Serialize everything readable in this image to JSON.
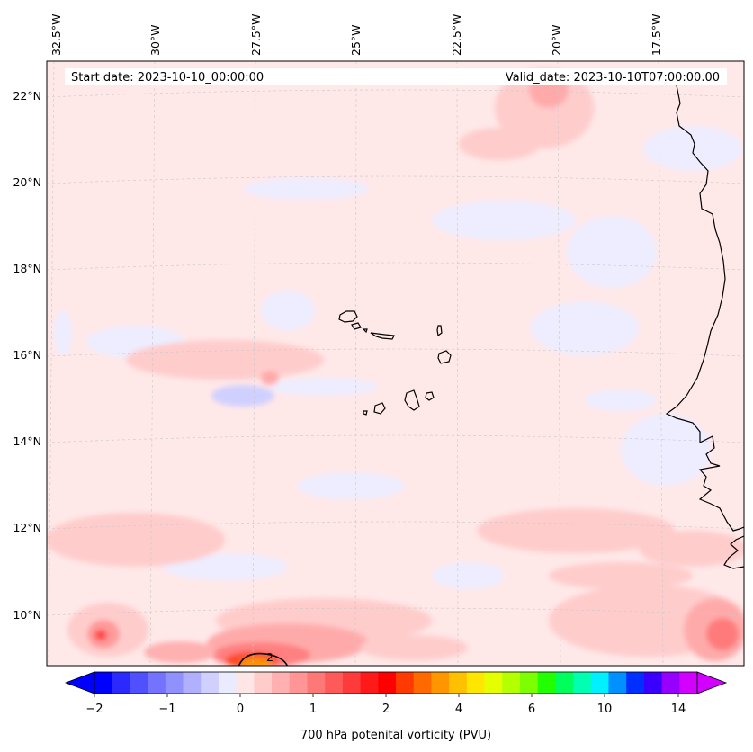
{
  "header": {
    "start_date": "Start date: 2023-10-10_00:00:00",
    "valid_date": "Valid_date: 2023-10-10T07:00:00.00"
  },
  "map": {
    "background_color": "#ffe8e8",
    "coastline_color": "#000000",
    "longitude_labels": [
      "32.5°W",
      "30°W",
      "27.5°W",
      "25°W",
      "22.5°W",
      "20°W",
      "17.5°W"
    ],
    "latitude_labels": [
      "22°N",
      "20°N",
      "18°N",
      "16°N",
      "14°N",
      "12°N",
      "10°N"
    ],
    "contour_label": "2",
    "features": {
      "cape_verde_islands": "coastline",
      "west_africa_coast": "coastline"
    }
  },
  "colorbar": {
    "label": "700 hPa potenital vorticity (PVU)",
    "tick_labels": [
      "−2",
      "−1",
      "0",
      "1",
      "2",
      "4",
      "6",
      "10",
      "14"
    ],
    "colors": [
      "#0000ff",
      "#2a2aff",
      "#5050ff",
      "#7373ff",
      "#9090ff",
      "#b0b0ff",
      "#d0d0ff",
      "#ebebff",
      "#ffe6e6",
      "#ffcccc",
      "#ffb0b0",
      "#ff9595",
      "#ff7878",
      "#ff5a5a",
      "#ff3a3a",
      "#ff1a1a",
      "#ff0000",
      "#ff3a00",
      "#ff6a00",
      "#ff9600",
      "#ffc000",
      "#ffe600",
      "#e6ff00",
      "#b4ff00",
      "#7cff00",
      "#22ff00",
      "#00ff5a",
      "#00ffb0",
      "#00f0ff",
      "#0090ff",
      "#0030ff",
      "#3a00ff",
      "#9600ff",
      "#d200ff"
    ]
  }
}
